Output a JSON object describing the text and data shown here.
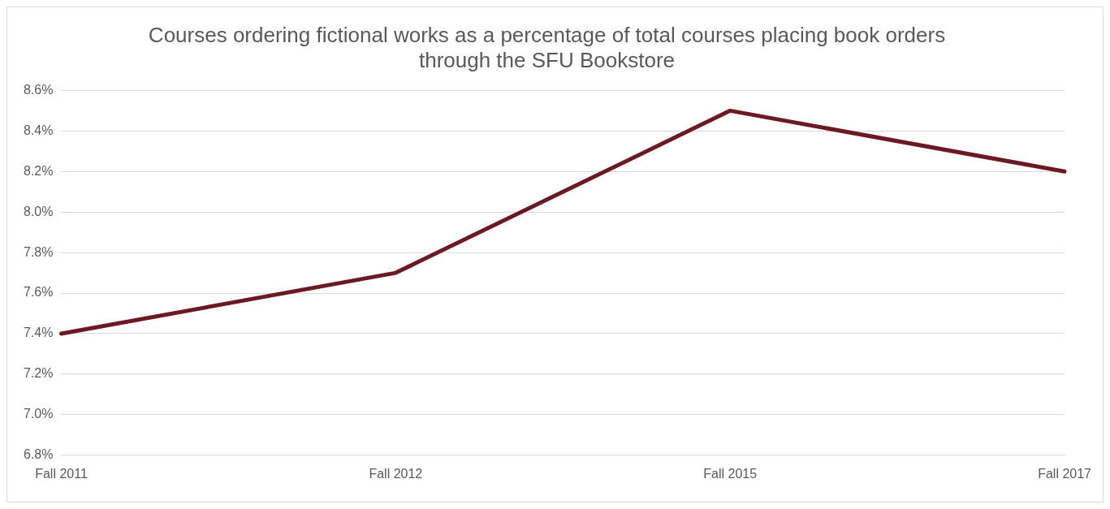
{
  "chart_data": {
    "type": "line",
    "title": "Courses ordering fictional works as a percentage of total courses placing book orders through the SFU Bookstore",
    "categories": [
      "Fall 2011",
      "Fall 2012",
      "Fall 2015",
      "Fall 2017"
    ],
    "series": [
      {
        "color": "#6b1a24",
        "values": [
          7.4,
          7.7,
          8.5,
          8.2
        ]
      }
    ],
    "ylim": [
      6.8,
      8.6
    ],
    "yticks": [
      {
        "value": 6.8,
        "label": "6.8%"
      },
      {
        "value": 7.0,
        "label": "7.0%"
      },
      {
        "value": 7.2,
        "label": "7.2%"
      },
      {
        "value": 7.4,
        "label": "7.4%"
      },
      {
        "value": 7.6,
        "label": "7.6%"
      },
      {
        "value": 7.8,
        "label": "7.8%"
      },
      {
        "value": 8.0,
        "label": "8.0%"
      },
      {
        "value": 8.2,
        "label": "8.2%"
      },
      {
        "value": 8.4,
        "label": "8.4%"
      },
      {
        "value": 8.6,
        "label": "8.6%"
      }
    ],
    "grid": "y",
    "legend": false,
    "marker": "none",
    "line_style": "solid"
  }
}
